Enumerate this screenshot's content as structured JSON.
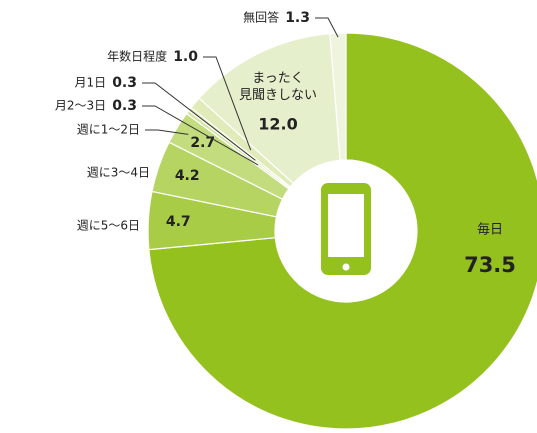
{
  "chart_data": {
    "type": "donut",
    "categories": [
      "毎日",
      "週に5〜6日",
      "週に3〜4日",
      "週に1〜2日",
      "月2〜3日",
      "月1日",
      "年数日程度",
      "まったく\n見聞きしない",
      "無回答"
    ],
    "values": [
      73.5,
      4.7,
      4.2,
      2.7,
      0.3,
      0.3,
      1.0,
      12.0,
      1.3
    ],
    "value_labels": [
      "73.5",
      "4.7",
      "4.2",
      "2.7",
      "0.3",
      "0.3",
      "1.0",
      "12.0",
      "1.3"
    ],
    "colors": [
      "#95c11f",
      "#a8cc45",
      "#b5d462",
      "#c2dc7e",
      "#d3e6a3",
      "#d9e9ae",
      "#dfecba",
      "#e6efcc",
      "#eef4de"
    ]
  }
}
